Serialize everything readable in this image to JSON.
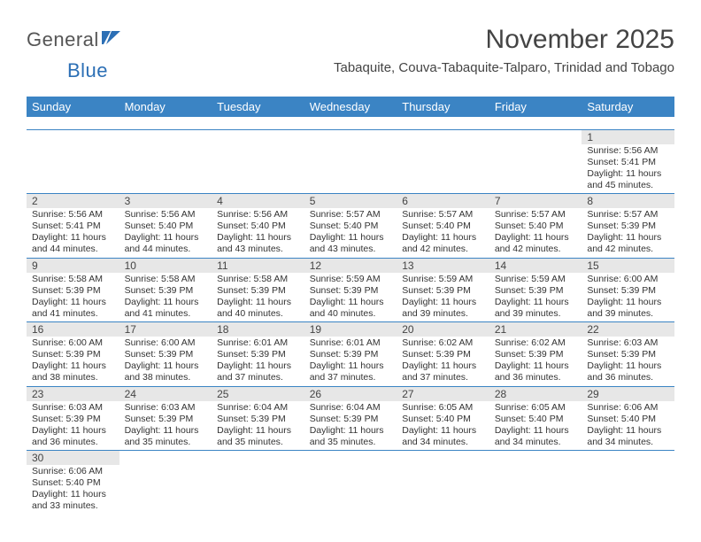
{
  "brand": {
    "part1": "General",
    "part2": "Blue"
  },
  "title": "November 2025",
  "location": "Tabaquite, Couva-Tabaquite-Talparo, Trinidad and Tobago",
  "colors": {
    "header_bg": "#3b84c4",
    "header_text": "#ffffff",
    "daynum_bg": "#e7e7e7",
    "border": "#3b84c4",
    "brand_blue": "#2c6fb5"
  },
  "day_labels": [
    "Sunday",
    "Monday",
    "Tuesday",
    "Wednesday",
    "Thursday",
    "Friday",
    "Saturday"
  ],
  "weeks": [
    [
      null,
      null,
      null,
      null,
      null,
      null,
      {
        "n": "1",
        "sunrise": "5:56 AM",
        "sunset": "5:41 PM",
        "daylight": "11 hours and 45 minutes."
      }
    ],
    [
      {
        "n": "2",
        "sunrise": "5:56 AM",
        "sunset": "5:41 PM",
        "daylight": "11 hours and 44 minutes."
      },
      {
        "n": "3",
        "sunrise": "5:56 AM",
        "sunset": "5:40 PM",
        "daylight": "11 hours and 44 minutes."
      },
      {
        "n": "4",
        "sunrise": "5:56 AM",
        "sunset": "5:40 PM",
        "daylight": "11 hours and 43 minutes."
      },
      {
        "n": "5",
        "sunrise": "5:57 AM",
        "sunset": "5:40 PM",
        "daylight": "11 hours and 43 minutes."
      },
      {
        "n": "6",
        "sunrise": "5:57 AM",
        "sunset": "5:40 PM",
        "daylight": "11 hours and 42 minutes."
      },
      {
        "n": "7",
        "sunrise": "5:57 AM",
        "sunset": "5:40 PM",
        "daylight": "11 hours and 42 minutes."
      },
      {
        "n": "8",
        "sunrise": "5:57 AM",
        "sunset": "5:39 PM",
        "daylight": "11 hours and 42 minutes."
      }
    ],
    [
      {
        "n": "9",
        "sunrise": "5:58 AM",
        "sunset": "5:39 PM",
        "daylight": "11 hours and 41 minutes."
      },
      {
        "n": "10",
        "sunrise": "5:58 AM",
        "sunset": "5:39 PM",
        "daylight": "11 hours and 41 minutes."
      },
      {
        "n": "11",
        "sunrise": "5:58 AM",
        "sunset": "5:39 PM",
        "daylight": "11 hours and 40 minutes."
      },
      {
        "n": "12",
        "sunrise": "5:59 AM",
        "sunset": "5:39 PM",
        "daylight": "11 hours and 40 minutes."
      },
      {
        "n": "13",
        "sunrise": "5:59 AM",
        "sunset": "5:39 PM",
        "daylight": "11 hours and 39 minutes."
      },
      {
        "n": "14",
        "sunrise": "5:59 AM",
        "sunset": "5:39 PM",
        "daylight": "11 hours and 39 minutes."
      },
      {
        "n": "15",
        "sunrise": "6:00 AM",
        "sunset": "5:39 PM",
        "daylight": "11 hours and 39 minutes."
      }
    ],
    [
      {
        "n": "16",
        "sunrise": "6:00 AM",
        "sunset": "5:39 PM",
        "daylight": "11 hours and 38 minutes."
      },
      {
        "n": "17",
        "sunrise": "6:00 AM",
        "sunset": "5:39 PM",
        "daylight": "11 hours and 38 minutes."
      },
      {
        "n": "18",
        "sunrise": "6:01 AM",
        "sunset": "5:39 PM",
        "daylight": "11 hours and 37 minutes."
      },
      {
        "n": "19",
        "sunrise": "6:01 AM",
        "sunset": "5:39 PM",
        "daylight": "11 hours and 37 minutes."
      },
      {
        "n": "20",
        "sunrise": "6:02 AM",
        "sunset": "5:39 PM",
        "daylight": "11 hours and 37 minutes."
      },
      {
        "n": "21",
        "sunrise": "6:02 AM",
        "sunset": "5:39 PM",
        "daylight": "11 hours and 36 minutes."
      },
      {
        "n": "22",
        "sunrise": "6:03 AM",
        "sunset": "5:39 PM",
        "daylight": "11 hours and 36 minutes."
      }
    ],
    [
      {
        "n": "23",
        "sunrise": "6:03 AM",
        "sunset": "5:39 PM",
        "daylight": "11 hours and 36 minutes."
      },
      {
        "n": "24",
        "sunrise": "6:03 AM",
        "sunset": "5:39 PM",
        "daylight": "11 hours and 35 minutes."
      },
      {
        "n": "25",
        "sunrise": "6:04 AM",
        "sunset": "5:39 PM",
        "daylight": "11 hours and 35 minutes."
      },
      {
        "n": "26",
        "sunrise": "6:04 AM",
        "sunset": "5:39 PM",
        "daylight": "11 hours and 35 minutes."
      },
      {
        "n": "27",
        "sunrise": "6:05 AM",
        "sunset": "5:40 PM",
        "daylight": "11 hours and 34 minutes."
      },
      {
        "n": "28",
        "sunrise": "6:05 AM",
        "sunset": "5:40 PM",
        "daylight": "11 hours and 34 minutes."
      },
      {
        "n": "29",
        "sunrise": "6:06 AM",
        "sunset": "5:40 PM",
        "daylight": "11 hours and 34 minutes."
      }
    ],
    [
      {
        "n": "30",
        "sunrise": "6:06 AM",
        "sunset": "5:40 PM",
        "daylight": "11 hours and 33 minutes."
      },
      null,
      null,
      null,
      null,
      null,
      null
    ]
  ],
  "label_prefix": {
    "sunrise": "Sunrise: ",
    "sunset": "Sunset: ",
    "daylight": "Daylight: "
  }
}
